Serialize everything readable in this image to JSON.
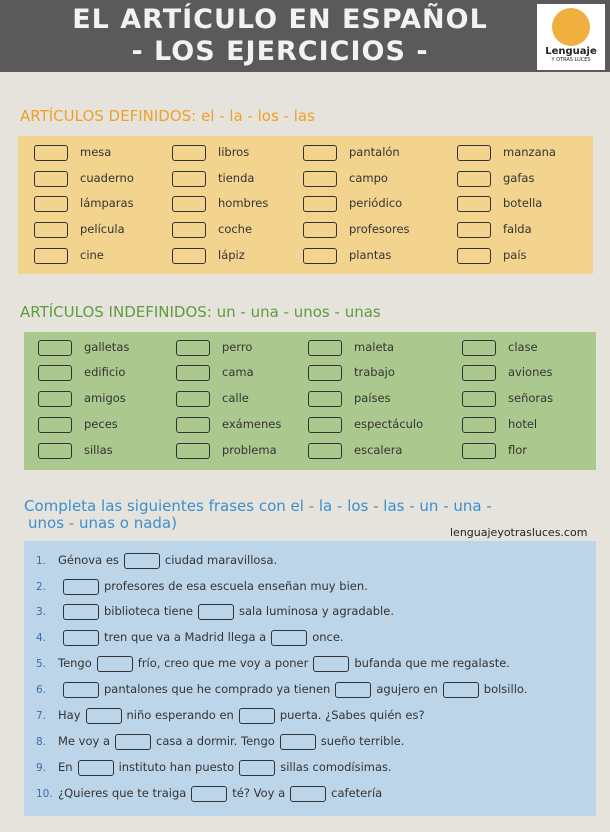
{
  "header": {
    "title_line1": "EL  ARTÍCULO EN ESPAÑOL",
    "title_line2": "- LOS  EJERCICIOS -",
    "logo_text": "Lenguaje",
    "logo_subtext": "Y OTRAS LUCES"
  },
  "definidos": {
    "title": "ARTÍCULOS  DEFINIDOS: el - la - los - las",
    "color": "#f0a02a",
    "panel_color": "#f3d48e",
    "words": [
      [
        "mesa",
        "libros",
        "pantalón",
        "manzana"
      ],
      [
        "cuaderno",
        "tienda",
        "campo",
        "gafas"
      ],
      [
        "lámparas",
        "hombres",
        "periódico",
        "botella"
      ],
      [
        "película",
        "coche",
        "profesores",
        "falda"
      ],
      [
        "cine",
        "lápiz",
        "plantas",
        "país"
      ]
    ]
  },
  "indefinidos": {
    "title": "ARTÍCULOS  INDEFINIDOS: un - una - unos - unas",
    "color": "#5c9e3a",
    "panel_color": "#abc98f",
    "words": [
      [
        "galletas",
        "perro",
        "maleta",
        "clase"
      ],
      [
        "edificio",
        "cama",
        "trabajo",
        "aviones"
      ],
      [
        "amigos",
        "calle",
        "países",
        "señoras"
      ],
      [
        "peces",
        "exámenes",
        "espectáculo",
        "hotel"
      ],
      [
        "sillas",
        "problema",
        "escalera",
        "flor"
      ]
    ]
  },
  "frases": {
    "title_line1": "Completa las siguientes frases con el - la - los - las - un - una -",
    "title_line2": "unos - unas o nada)",
    "url": "lenguajeyotrasluces.com",
    "color": "#3a8fd0",
    "panel_color": "#bdd5e8",
    "items": [
      {
        "num": "1.",
        "parts": [
          "Génova es",
          "ciudad maravillosa."
        ]
      },
      {
        "num": "2.",
        "parts": [
          "",
          "profesores de esa escuela enseñan muy bien."
        ]
      },
      {
        "num": "3.",
        "parts": [
          "",
          "biblioteca tiene",
          "sala luminosa y agradable."
        ]
      },
      {
        "num": "4.",
        "parts": [
          "",
          "tren que va a Madrid llega a",
          "once."
        ]
      },
      {
        "num": "5.",
        "parts": [
          "Tengo",
          "frío, creo que me voy a poner",
          "bufanda que me regalaste."
        ]
      },
      {
        "num": "6.",
        "parts": [
          "",
          "pantalones que he comprado ya tienen",
          "agujero en",
          "bolsillo."
        ]
      },
      {
        "num": "7.",
        "parts": [
          "Hay",
          "niño esperando en",
          "puerta. ¿Sabes quién es?"
        ]
      },
      {
        "num": "8.",
        "parts": [
          "Me voy a",
          "casa a dormir. Tengo",
          "sueño terrible."
        ]
      },
      {
        "num": "9.",
        "parts": [
          "En",
          "instituto han puesto",
          "sillas comodísimas."
        ]
      },
      {
        "num": "10.",
        "parts": [
          "¿Quieres que te traiga",
          "té? Voy a",
          "cafetería"
        ]
      }
    ]
  }
}
